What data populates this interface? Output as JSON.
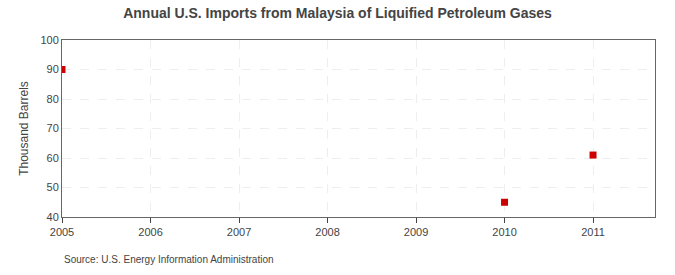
{
  "chart_data": {
    "type": "scatter",
    "title": "Annual U.S. Imports from Malaysia of Liquified Petroleum Gases",
    "ylabel": "Thousand Barrels",
    "source": "Source: U.S. Energy Information Administration",
    "x": [
      2005,
      2010,
      2011
    ],
    "values": [
      90,
      45,
      61
    ],
    "color": "#CC0000",
    "marker": "square",
    "xlim": [
      2005,
      2011.7
    ],
    "ylim": [
      40,
      100
    ],
    "xticks": [
      2005,
      2006,
      2007,
      2008,
      2009,
      2010,
      2011
    ],
    "yticks": [
      40,
      50,
      60,
      70,
      80,
      90,
      100
    ],
    "grid": true
  }
}
